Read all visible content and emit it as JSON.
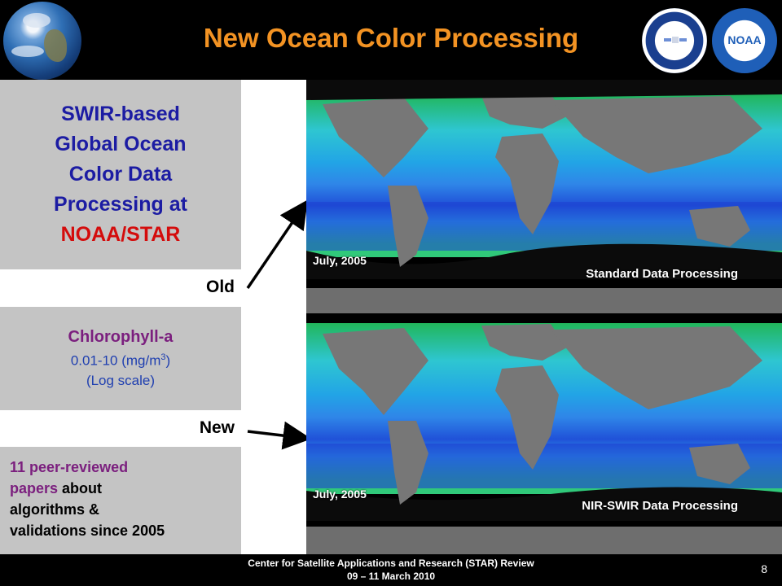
{
  "header": {
    "title": "New Ocean Color Processing"
  },
  "left": {
    "panel1_lines": [
      "SWIR-based",
      "Global Ocean",
      "Color Data",
      "Processing at"
    ],
    "panel1_highlight": "NOAA/STAR",
    "label_old": "Old",
    "chlorophyll_title": "Chlorophyll-a",
    "chlorophyll_range": "0.01-10 (mg/m",
    "chlorophyll_range_sup": "3",
    "chlorophyll_range_end": ")",
    "chlorophyll_scale": "(Log scale)",
    "label_new": "New",
    "papers_count": "11 peer-reviewed",
    "papers_word": "papers",
    "papers_rest1": " about",
    "papers_rest2": "algorithms &",
    "papers_rest3": "validations since 2005"
  },
  "maps": {
    "top": {
      "date": "July, 2005",
      "caption": "Standard Data Processing"
    },
    "bottom": {
      "date": "July, 2005",
      "caption": "NIR-SWIR Data Processing"
    }
  },
  "colors": {
    "title": "#f39323",
    "panel_bg": "#c4c4c4",
    "navy_text": "#1c1ca3",
    "red_text": "#d40c0c",
    "purple_text": "#7b1f7e"
  },
  "footer": {
    "line1": "Center for Satellite Applications and Research (STAR) Review",
    "line2": "09 – 11 March 2010",
    "page": "8"
  }
}
